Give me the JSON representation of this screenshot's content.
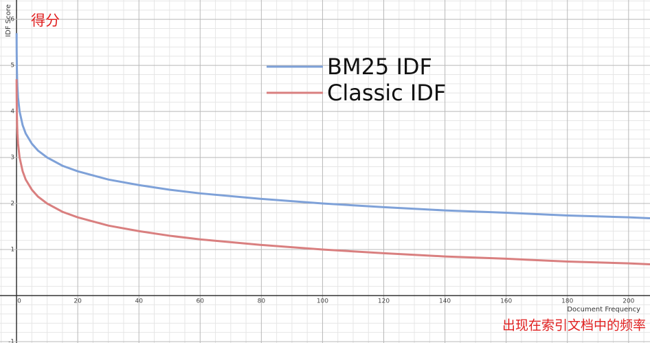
{
  "chart_data": {
    "type": "line",
    "y_label": "IDF Score",
    "x_label": "Document Frequency",
    "annotations": [
      "得分",
      "出现在索引文档中的频率"
    ],
    "x": [
      0.02,
      0.05,
      0.1,
      0.2,
      0.3,
      0.5,
      1,
      2,
      3,
      5,
      7,
      10,
      15,
      20,
      30,
      40,
      50,
      60,
      80,
      100,
      120,
      140,
      160,
      180,
      200,
      207
    ],
    "series": [
      {
        "name": "BM25 IDF",
        "color": "#7ea1d8",
        "values": [
          5.7,
          5.3,
          5.0,
          4.7,
          4.52,
          4.3,
          4.0,
          3.7,
          3.52,
          3.3,
          3.15,
          3.0,
          2.82,
          2.7,
          2.52,
          2.4,
          2.3,
          2.22,
          2.1,
          2.0,
          1.92,
          1.85,
          1.8,
          1.74,
          1.7,
          1.68
        ]
      },
      {
        "name": "Classic IDF",
        "color": "#d97f7f",
        "values": [
          4.7,
          4.3,
          4.0,
          3.7,
          3.52,
          3.3,
          3.0,
          2.7,
          2.52,
          2.3,
          2.15,
          2.0,
          1.82,
          1.7,
          1.52,
          1.4,
          1.3,
          1.22,
          1.1,
          1.0,
          0.92,
          0.85,
          0.8,
          0.74,
          0.7,
          0.68
        ]
      }
    ],
    "xlim": [
      -5.4,
      207
    ],
    "ylim": [
      -1.03,
      6.42
    ],
    "xticks": [
      0,
      20,
      40,
      60,
      80,
      100,
      120,
      140,
      160,
      180,
      200
    ],
    "yticks": [
      -1,
      1,
      2,
      3,
      4,
      5,
      6
    ],
    "xminorticks": [
      -5,
      5,
      10,
      15,
      25,
      30,
      35,
      45,
      50,
      55,
      65,
      70,
      75,
      85,
      90,
      95,
      105,
      110,
      115,
      125,
      130,
      135,
      145,
      150,
      155,
      165,
      170,
      175,
      185,
      190,
      195,
      205
    ],
    "yminorticks": [
      -0.8,
      -0.6,
      -0.4,
      -0.2,
      0.2,
      0.4,
      0.6,
      0.8,
      1.2,
      1.4,
      1.6,
      1.8,
      2.2,
      2.4,
      2.6,
      2.8,
      3.2,
      3.4,
      3.6,
      3.8,
      4.2,
      4.4,
      4.6,
      4.8,
      5.2,
      5.4,
      5.6,
      5.8,
      6.2,
      6.4
    ],
    "grid": true
  }
}
